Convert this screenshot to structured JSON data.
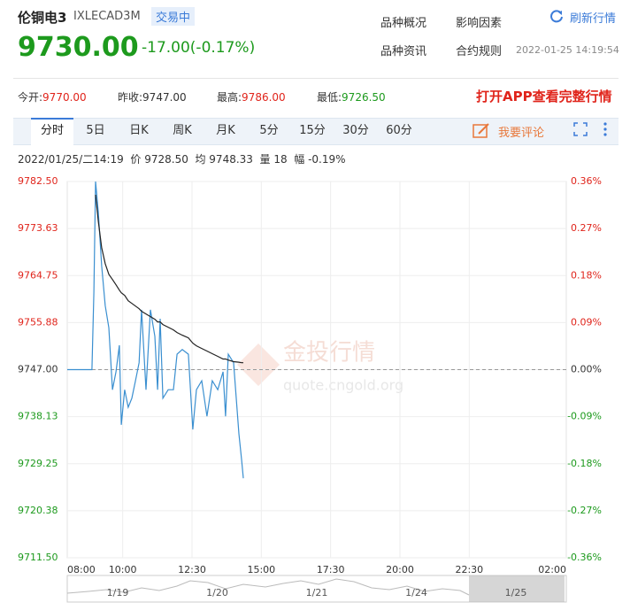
{
  "header": {
    "name": "伦铜电3",
    "code": "IXLECAD3M",
    "status": "交易中",
    "price": "9730.00",
    "change": "-17.00(-0.17%)",
    "links": [
      "品种概况",
      "影响因素",
      "品种资讯",
      "合约规则"
    ],
    "refresh": "刷新行情",
    "time": "2022-01-25 14:19:54"
  },
  "stats": [
    {
      "label": "今开:",
      "value": "9770.00"
    },
    {
      "label": "昨收:",
      "value": "9747.00"
    },
    {
      "label": "最高:",
      "value": "9786.00"
    },
    {
      "label": "最低:",
      "value": "9726.50"
    }
  ],
  "promo": "打开APP查看完整行情",
  "tabs": [
    "分时",
    "5日",
    "日K",
    "周K",
    "月K",
    "5分",
    "15分",
    "30分",
    "60分"
  ],
  "comment": "我要评论",
  "info_line": "2022/01/25/二14:19  价 9728.50  均 9748.33  量 18  幅 -0.19%",
  "watermark": {
    "brand": "金投行情",
    "url": "quote.cngold.org"
  },
  "navigator": {
    "dates": [
      "1/19",
      "1/20",
      "1/21",
      "1/24",
      "1/25"
    ]
  },
  "chart_data": {
    "type": "line",
    "grid": true,
    "reference": 9747,
    "up_color": "#e0241b",
    "down_color": "#1d9a1d",
    "x": [
      8.0,
      8.89,
      8.96,
      9.02,
      9.12,
      9.24,
      9.37,
      9.5,
      9.63,
      9.76,
      9.88,
      9.95,
      10.07,
      10.2,
      10.33,
      10.46,
      10.59,
      10.68,
      10.84,
      11.0,
      11.16,
      11.26,
      11.35,
      11.45,
      11.64,
      11.83,
      11.96,
      12.15,
      12.37,
      12.53,
      12.66,
      12.85,
      13.04,
      13.23,
      13.43,
      13.62,
      13.71,
      13.81,
      14.0,
      14.19,
      14.29,
      14.35
    ],
    "series": [
      {
        "name": "价",
        "color": "#3a8fd0",
        "values": [
          9747,
          9747,
          9761.6,
          9782.5,
          9776.7,
          9766.6,
          9759.1,
          9754.9,
          9743.2,
          9746.6,
          9751.6,
          9736.6,
          9743.2,
          9739.9,
          9741.6,
          9744.9,
          9748.3,
          9758.3,
          9743.2,
          9758.3,
          9753.3,
          9743.2,
          9756.6,
          9741.6,
          9743.2,
          9743.2,
          9749.9,
          9750.8,
          9749.9,
          9735.7,
          9743.2,
          9744.9,
          9738.2,
          9744.9,
          9743.2,
          9746.6,
          9738.2,
          9749.9,
          9748.3,
          9734.9,
          9729.9,
          9726.5
        ]
      },
      {
        "name": "均",
        "color": "#222222",
        "values": [
          null,
          null,
          null,
          9780,
          9775,
          9770,
          9767,
          9765,
          9764,
          9763,
          9762,
          9761.5,
          9761,
          9760,
          9759.5,
          9759,
          9758.5,
          9758,
          9757.5,
          9757,
          9756.5,
          9756,
          9756,
          9755.5,
          9755,
          9754.5,
          9754,
          9753.5,
          9753,
          9752,
          9751.5,
          9751,
          9750.5,
          9750,
          9749.5,
          9749,
          9749,
          9748.8,
          9748.5,
          9748.4,
          9748.3,
          9748.3
        ]
      }
    ],
    "xlim": [
      8,
      26
    ],
    "xticks": [
      {
        "value": 8,
        "label": "08:00"
      },
      {
        "value": 10,
        "label": "10:00"
      },
      {
        "value": 12.5,
        "label": "12:30"
      },
      {
        "value": 15,
        "label": "15:00"
      },
      {
        "value": 17.5,
        "label": "17:30"
      },
      {
        "value": 20,
        "label": "20:00"
      },
      {
        "value": 22.5,
        "label": "22:30"
      },
      {
        "value": 26,
        "label": "02:00"
      }
    ],
    "ylim": [
      9711.5,
      9782.5
    ],
    "yticks": [
      {
        "value": 9782.5,
        "label": "9782.50"
      },
      {
        "value": 9773.625,
        "label": "9773.63"
      },
      {
        "value": 9764.75,
        "label": "9764.75"
      },
      {
        "value": 9755.875,
        "label": "9755.88"
      },
      {
        "value": 9747,
        "label": "9747.00"
      },
      {
        "value": 9738.125,
        "label": "9738.13"
      },
      {
        "value": 9729.25,
        "label": "9729.25"
      },
      {
        "value": 9720.375,
        "label": "9720.38"
      },
      {
        "value": 9711.5,
        "label": "9711.50"
      }
    ],
    "y2lim": [
      -0.3642,
      0.3642
    ],
    "y2ticks": [
      {
        "value": 0.3642,
        "label": "0.36%"
      },
      {
        "value": 0.2732,
        "label": "0.27%"
      },
      {
        "value": 0.1821,
        "label": "0.18%"
      },
      {
        "value": 0.0911,
        "label": "0.09%"
      },
      {
        "value": 0,
        "label": "0.00%"
      },
      {
        "value": -0.0911,
        "label": "-0.09%"
      },
      {
        "value": -0.1821,
        "label": "-0.18%"
      },
      {
        "value": -0.2732,
        "label": "-0.27%"
      },
      {
        "value": -0.3642,
        "label": "-0.36%"
      }
    ]
  }
}
